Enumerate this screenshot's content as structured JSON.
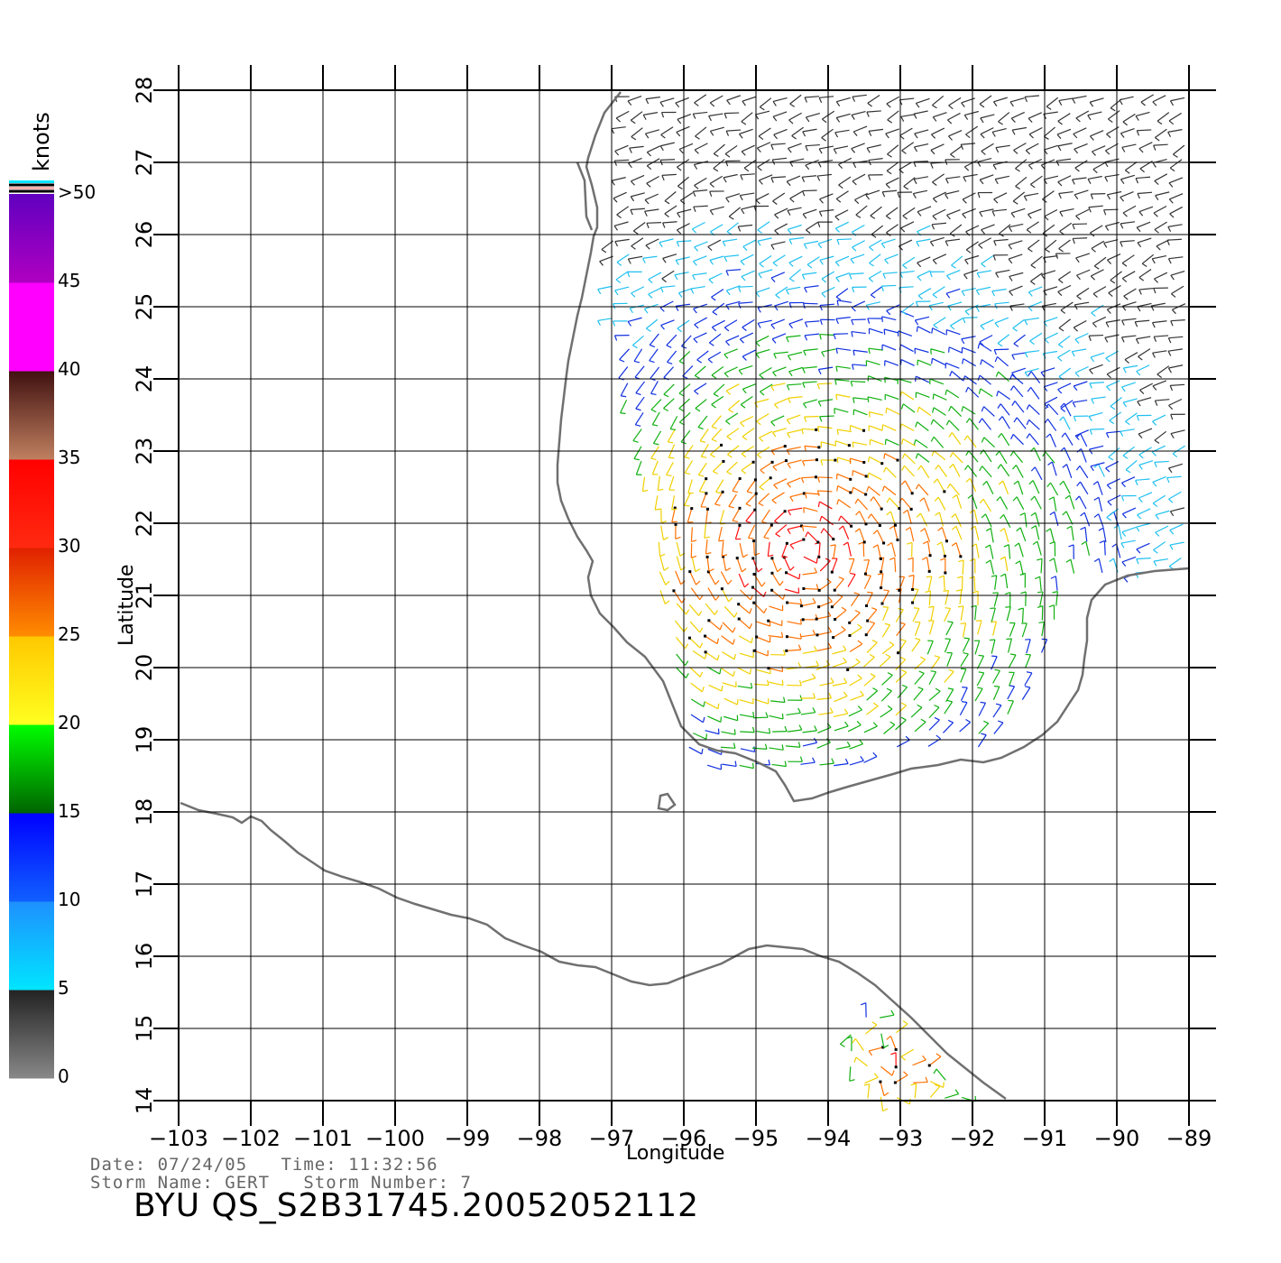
{
  "chart_data": {
    "type": "wind-vector-map",
    "xlabel": "Longitude",
    "ylabel": "Latitude",
    "xlim": [
      -103,
      -89
    ],
    "ylim": [
      14,
      28
    ],
    "x_ticks": [
      "-103",
      "-102",
      "-101",
      "-100",
      "-99",
      "-98",
      "-97",
      "-96",
      "-95",
      "-94",
      "-93",
      "-92",
      "-91",
      "-90",
      "-89"
    ],
    "y_ticks": [
      "14",
      "15",
      "16",
      "17",
      "18",
      "19",
      "20",
      "21",
      "22",
      "23",
      "24",
      "25",
      "26",
      "27",
      "28"
    ],
    "colorbar": {
      "units": "knots",
      "labels": [
        "0",
        "5",
        "10",
        "15",
        "20",
        "25",
        "30",
        "35",
        "40",
        "45",
        ">50"
      ],
      "bands": [
        {
          "range": "0-5",
          "top": "#222222",
          "bottom": "#888888"
        },
        {
          "range": "5-10",
          "top": "#1e90ff",
          "bottom": "#00e5ff"
        },
        {
          "range": "10-15",
          "top": "#0000ff",
          "bottom": "#1060ff"
        },
        {
          "range": "15-20",
          "top": "#00ff00",
          "bottom": "#006400"
        },
        {
          "range": "20-25",
          "top": "#ffc800",
          "bottom": "#ffff20"
        },
        {
          "range": "25-30",
          "top": "#e02000",
          "bottom": "#ff8c00"
        },
        {
          "range": "30-35",
          "top": "#ff0000",
          "bottom": "#ff2a10"
        },
        {
          "range": "35-40",
          "top": "#401010",
          "bottom": "#c08060"
        },
        {
          "range": "40-45",
          "top": "#ff00ff",
          "bottom": "#ff00ff"
        },
        {
          "range": "45-50",
          "top": "#6000c0",
          "bottom": "#b000c0"
        }
      ]
    },
    "storm_center_approx": {
      "lon": -94.3,
      "lat": 21.6
    }
  },
  "info": {
    "date_line": "Date: 07/24/05   Time: 11:32:56",
    "storm_line": "Storm Name: GERT   Storm Number: 7",
    "product": "BYU QS_S2B31745.20052052112"
  },
  "colors": {
    "coastline": "#707070",
    "grid": "#000000"
  }
}
